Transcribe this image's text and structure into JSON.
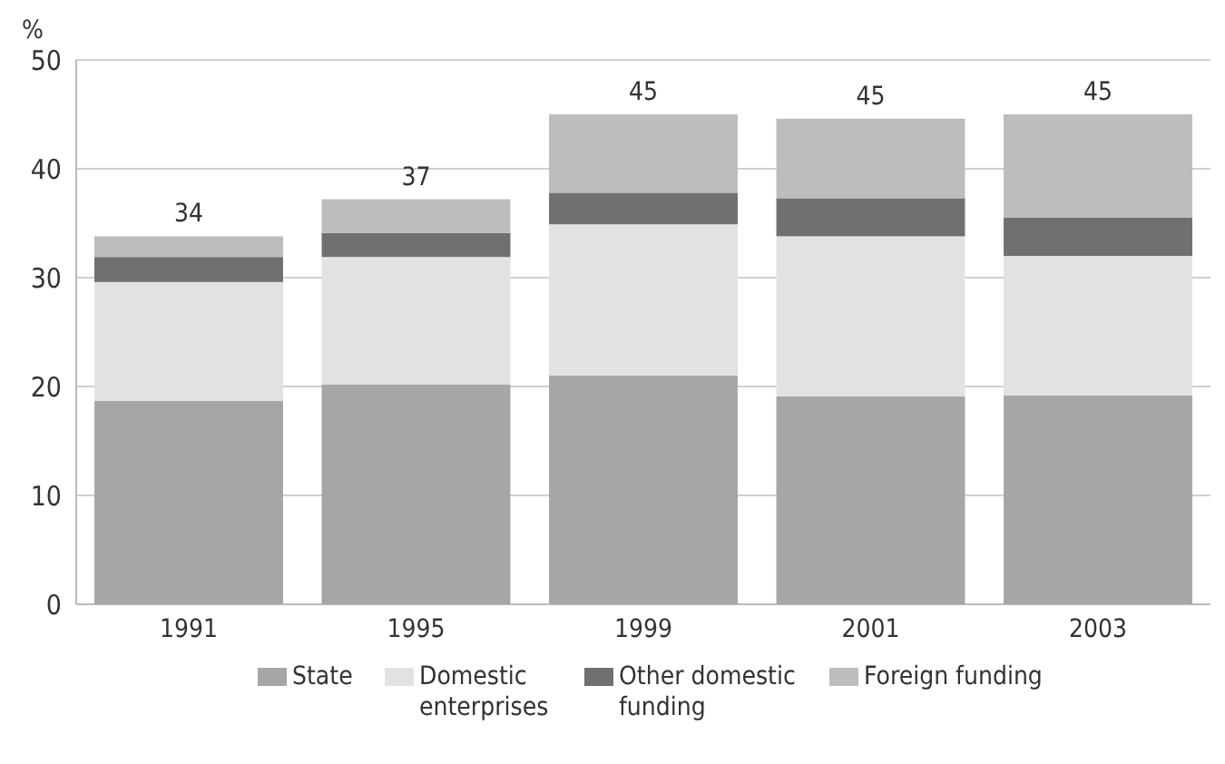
{
  "chart_data": {
    "type": "bar",
    "stacked": true,
    "ylabel": "%",
    "categories": [
      "1991",
      "1995",
      "1999",
      "2001",
      "2003"
    ],
    "series": [
      {
        "name": "State",
        "color": "#a6a6a6",
        "values": [
          18.7,
          20.2,
          21.0,
          19.1,
          19.2
        ]
      },
      {
        "name": "Domestic enterprises",
        "color": "#e2e2e2",
        "values": [
          10.9,
          11.7,
          13.9,
          14.7,
          12.8
        ]
      },
      {
        "name": "Other domestic funding",
        "color": "#707070",
        "values": [
          2.3,
          2.2,
          2.9,
          3.5,
          3.5
        ]
      },
      {
        "name": "Foreign funding",
        "color": "#bdbdbd",
        "values": [
          1.9,
          3.1,
          7.2,
          7.3,
          9.5
        ]
      }
    ],
    "totals": [
      "34",
      "37",
      "45",
      "45",
      "45"
    ],
    "ylim": [
      0,
      50
    ],
    "yticks": [
      0,
      10,
      20,
      30,
      40,
      50
    ],
    "grid": "y",
    "legend": "bottom"
  }
}
